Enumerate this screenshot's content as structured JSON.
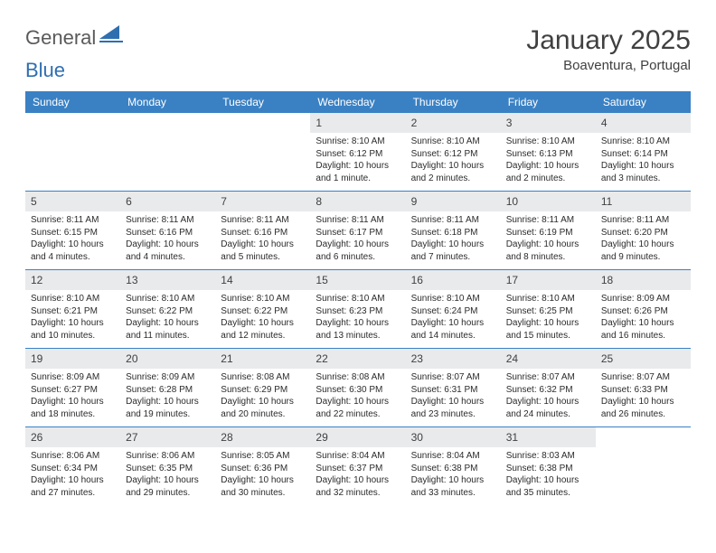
{
  "logo": {
    "part1": "General",
    "part2": "Blue"
  },
  "title": "January 2025",
  "location": "Boaventura, Portugal",
  "colors": {
    "header_bg": "#3a81c4",
    "header_text": "#ffffff",
    "daynum_bg": "#e9eaec",
    "body_text": "#2b2b2b",
    "rule": "#3a81c4",
    "logo_triangle": "#2f6fb0",
    "logo_underline": "#2f6fb0"
  },
  "weekdays": [
    "Sunday",
    "Monday",
    "Tuesday",
    "Wednesday",
    "Thursday",
    "Friday",
    "Saturday"
  ],
  "weeks": [
    [
      {
        "n": "",
        "sr": "",
        "ss": "",
        "dl": ""
      },
      {
        "n": "",
        "sr": "",
        "ss": "",
        "dl": ""
      },
      {
        "n": "",
        "sr": "",
        "ss": "",
        "dl": ""
      },
      {
        "n": "1",
        "sr": "Sunrise: 8:10 AM",
        "ss": "Sunset: 6:12 PM",
        "dl": "Daylight: 10 hours and 1 minute."
      },
      {
        "n": "2",
        "sr": "Sunrise: 8:10 AM",
        "ss": "Sunset: 6:12 PM",
        "dl": "Daylight: 10 hours and 2 minutes."
      },
      {
        "n": "3",
        "sr": "Sunrise: 8:10 AM",
        "ss": "Sunset: 6:13 PM",
        "dl": "Daylight: 10 hours and 2 minutes."
      },
      {
        "n": "4",
        "sr": "Sunrise: 8:10 AM",
        "ss": "Sunset: 6:14 PM",
        "dl": "Daylight: 10 hours and 3 minutes."
      }
    ],
    [
      {
        "n": "5",
        "sr": "Sunrise: 8:11 AM",
        "ss": "Sunset: 6:15 PM",
        "dl": "Daylight: 10 hours and 4 minutes."
      },
      {
        "n": "6",
        "sr": "Sunrise: 8:11 AM",
        "ss": "Sunset: 6:16 PM",
        "dl": "Daylight: 10 hours and 4 minutes."
      },
      {
        "n": "7",
        "sr": "Sunrise: 8:11 AM",
        "ss": "Sunset: 6:16 PM",
        "dl": "Daylight: 10 hours and 5 minutes."
      },
      {
        "n": "8",
        "sr": "Sunrise: 8:11 AM",
        "ss": "Sunset: 6:17 PM",
        "dl": "Daylight: 10 hours and 6 minutes."
      },
      {
        "n": "9",
        "sr": "Sunrise: 8:11 AM",
        "ss": "Sunset: 6:18 PM",
        "dl": "Daylight: 10 hours and 7 minutes."
      },
      {
        "n": "10",
        "sr": "Sunrise: 8:11 AM",
        "ss": "Sunset: 6:19 PM",
        "dl": "Daylight: 10 hours and 8 minutes."
      },
      {
        "n": "11",
        "sr": "Sunrise: 8:11 AM",
        "ss": "Sunset: 6:20 PM",
        "dl": "Daylight: 10 hours and 9 minutes."
      }
    ],
    [
      {
        "n": "12",
        "sr": "Sunrise: 8:10 AM",
        "ss": "Sunset: 6:21 PM",
        "dl": "Daylight: 10 hours and 10 minutes."
      },
      {
        "n": "13",
        "sr": "Sunrise: 8:10 AM",
        "ss": "Sunset: 6:22 PM",
        "dl": "Daylight: 10 hours and 11 minutes."
      },
      {
        "n": "14",
        "sr": "Sunrise: 8:10 AM",
        "ss": "Sunset: 6:22 PM",
        "dl": "Daylight: 10 hours and 12 minutes."
      },
      {
        "n": "15",
        "sr": "Sunrise: 8:10 AM",
        "ss": "Sunset: 6:23 PM",
        "dl": "Daylight: 10 hours and 13 minutes."
      },
      {
        "n": "16",
        "sr": "Sunrise: 8:10 AM",
        "ss": "Sunset: 6:24 PM",
        "dl": "Daylight: 10 hours and 14 minutes."
      },
      {
        "n": "17",
        "sr": "Sunrise: 8:10 AM",
        "ss": "Sunset: 6:25 PM",
        "dl": "Daylight: 10 hours and 15 minutes."
      },
      {
        "n": "18",
        "sr": "Sunrise: 8:09 AM",
        "ss": "Sunset: 6:26 PM",
        "dl": "Daylight: 10 hours and 16 minutes."
      }
    ],
    [
      {
        "n": "19",
        "sr": "Sunrise: 8:09 AM",
        "ss": "Sunset: 6:27 PM",
        "dl": "Daylight: 10 hours and 18 minutes."
      },
      {
        "n": "20",
        "sr": "Sunrise: 8:09 AM",
        "ss": "Sunset: 6:28 PM",
        "dl": "Daylight: 10 hours and 19 minutes."
      },
      {
        "n": "21",
        "sr": "Sunrise: 8:08 AM",
        "ss": "Sunset: 6:29 PM",
        "dl": "Daylight: 10 hours and 20 minutes."
      },
      {
        "n": "22",
        "sr": "Sunrise: 8:08 AM",
        "ss": "Sunset: 6:30 PM",
        "dl": "Daylight: 10 hours and 22 minutes."
      },
      {
        "n": "23",
        "sr": "Sunrise: 8:07 AM",
        "ss": "Sunset: 6:31 PM",
        "dl": "Daylight: 10 hours and 23 minutes."
      },
      {
        "n": "24",
        "sr": "Sunrise: 8:07 AM",
        "ss": "Sunset: 6:32 PM",
        "dl": "Daylight: 10 hours and 24 minutes."
      },
      {
        "n": "25",
        "sr": "Sunrise: 8:07 AM",
        "ss": "Sunset: 6:33 PM",
        "dl": "Daylight: 10 hours and 26 minutes."
      }
    ],
    [
      {
        "n": "26",
        "sr": "Sunrise: 8:06 AM",
        "ss": "Sunset: 6:34 PM",
        "dl": "Daylight: 10 hours and 27 minutes."
      },
      {
        "n": "27",
        "sr": "Sunrise: 8:06 AM",
        "ss": "Sunset: 6:35 PM",
        "dl": "Daylight: 10 hours and 29 minutes."
      },
      {
        "n": "28",
        "sr": "Sunrise: 8:05 AM",
        "ss": "Sunset: 6:36 PM",
        "dl": "Daylight: 10 hours and 30 minutes."
      },
      {
        "n": "29",
        "sr": "Sunrise: 8:04 AM",
        "ss": "Sunset: 6:37 PM",
        "dl": "Daylight: 10 hours and 32 minutes."
      },
      {
        "n": "30",
        "sr": "Sunrise: 8:04 AM",
        "ss": "Sunset: 6:38 PM",
        "dl": "Daylight: 10 hours and 33 minutes."
      },
      {
        "n": "31",
        "sr": "Sunrise: 8:03 AM",
        "ss": "Sunset: 6:38 PM",
        "dl": "Daylight: 10 hours and 35 minutes."
      },
      {
        "n": "",
        "sr": "",
        "ss": "",
        "dl": ""
      }
    ]
  ]
}
